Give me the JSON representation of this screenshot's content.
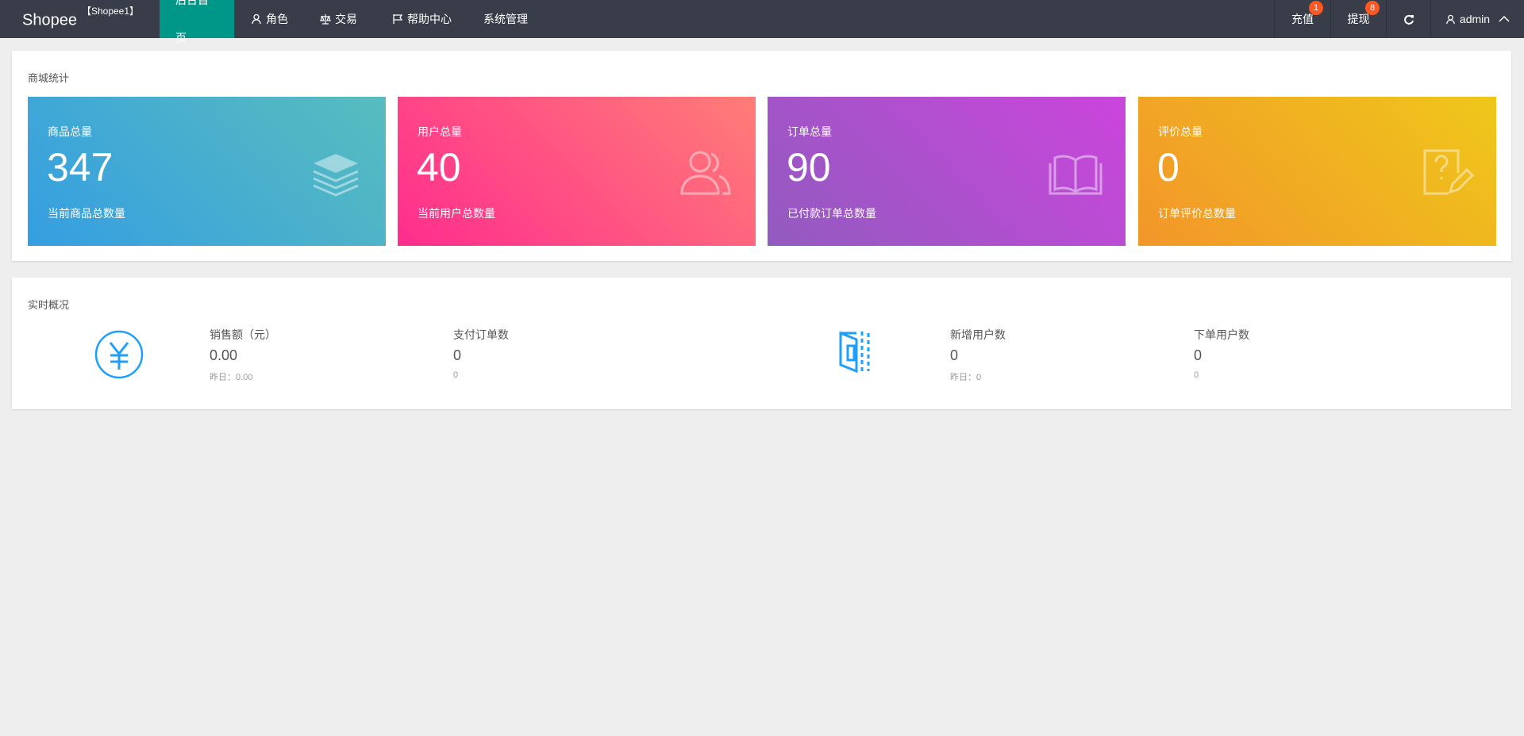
{
  "header": {
    "logo": "Shopee",
    "logo_tag": "【Shopee1】",
    "nav": [
      {
        "label": "后台首页",
        "icon": "none"
      },
      {
        "label": "角色",
        "icon": "user-icon"
      },
      {
        "label": "交易",
        "icon": "scale-icon"
      },
      {
        "label": "帮助中心",
        "icon": "flag-icon"
      },
      {
        "label": "系统管理",
        "icon": "none"
      }
    ],
    "right": {
      "recharge": "充值",
      "recharge_badge": "1",
      "withdraw": "提现",
      "withdraw_badge": "8",
      "user": "admin"
    }
  },
  "stats": {
    "title": "商城统计",
    "boxes": [
      {
        "label": "商品总量",
        "value": "347",
        "sub": "当前商品总数量",
        "icon": "layers-icon"
      },
      {
        "label": "用户总量",
        "value": "40",
        "sub": "当前用户总数量",
        "icon": "users-icon"
      },
      {
        "label": "订单总量",
        "value": "90",
        "sub": "已付款订单总数量",
        "icon": "book-icon"
      },
      {
        "label": "评价总量",
        "value": "0",
        "sub": "订单评价总数量",
        "icon": "question-edit-icon"
      }
    ]
  },
  "realtime": {
    "title": "实时概况",
    "items": [
      {
        "label": "销售额（元）",
        "value": "0.00",
        "sub": "昨日：0.00"
      },
      {
        "label": "支付订单数",
        "value": "0",
        "sub": "0"
      },
      {
        "label": "新增用户数",
        "value": "0",
        "sub": "昨日：0"
      },
      {
        "label": "下单用户数",
        "value": "0",
        "sub": "0"
      }
    ]
  },
  "colors": {
    "header": "#393d49",
    "active": "#009688",
    "badge": "#ff5722",
    "icon_blue": "#1e9fff"
  }
}
